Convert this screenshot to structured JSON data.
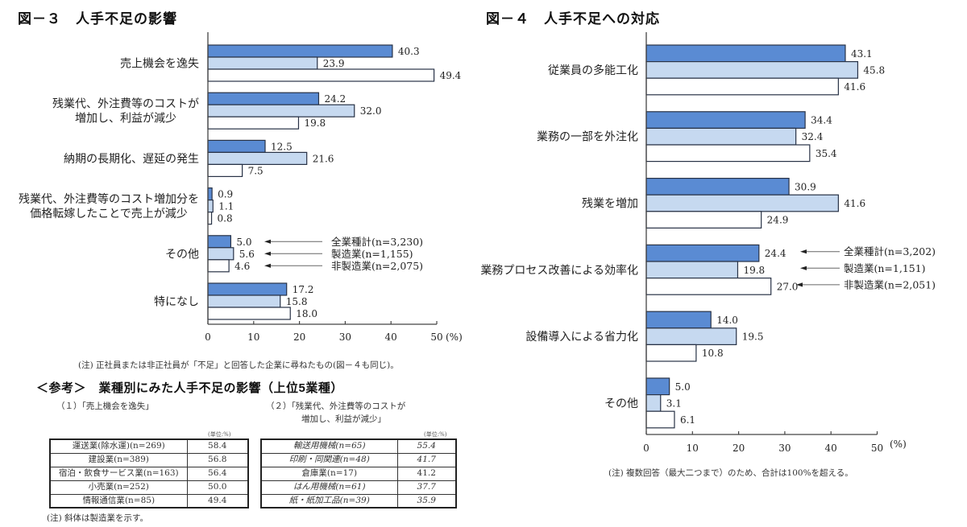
{
  "colors": {
    "all_industries": "#5a8bd3",
    "manufacturing": "#c6d9f0",
    "non_manufacturing": "#ffffff",
    "bar_border": "#283246",
    "axis": "#444444"
  },
  "reference": {
    "heading": "＜参考＞　業種別にみた人手不足の影響（上位5業種）",
    "table1": {
      "caption": "（１）「売上機会を逸失」",
      "unit": "(単位:%)",
      "rows": [
        {
          "industry": "運送業(除水運)(n=269)",
          "value": "58.4",
          "manufacturing": false
        },
        {
          "industry": "建設業(n=389)",
          "value": "56.8",
          "manufacturing": false
        },
        {
          "industry": "宿泊・飲食サービス業(n=163)",
          "value": "56.4",
          "manufacturing": false
        },
        {
          "industry": "小売業(n=252)",
          "value": "50.0",
          "manufacturing": false
        },
        {
          "industry": "情報通信業(n=85)",
          "value": "49.4",
          "manufacturing": false
        }
      ]
    },
    "table2": {
      "caption_lines": [
        "（２）「残業代、外注費等のコストが",
        "増加し、利益が減少」"
      ],
      "unit": "(単位:%)",
      "rows": [
        {
          "industry": "輸送用機械(n=65)",
          "value": "55.4",
          "manufacturing": true
        },
        {
          "industry": "印刷・同関連(n=48)",
          "value": "41.7",
          "manufacturing": true
        },
        {
          "industry": "倉庫業(n=17)",
          "value": "41.2",
          "manufacturing": false
        },
        {
          "industry": "はん用機械(n=61)",
          "value": "37.7",
          "manufacturing": true
        },
        {
          "industry": "紙・紙加工品(n=39)",
          "value": "35.9",
          "manufacturing": true
        }
      ]
    },
    "note": "(注) 斜体は製造業を示す。"
  },
  "chart_data": [
    {
      "type": "bar",
      "orientation": "horizontal",
      "title": "図－３　人手不足の影響",
      "categories": [
        [
          "売上機会を逸失"
        ],
        [
          "残業代、外注費等のコストが",
          "増加し、利益が減少"
        ],
        [
          "納期の長期化、遅延の発生"
        ],
        [
          "残業代、外注費等のコスト増加分を",
          "価格転嫁したことで売上が減少"
        ],
        [
          "その他"
        ],
        [
          "特になし"
        ]
      ],
      "series": [
        {
          "name": "全業種計(n=3,230)",
          "color": "#5a8bd3",
          "values": [
            40.3,
            24.2,
            12.5,
            0.9,
            5.0,
            17.2
          ]
        },
        {
          "name": "製造業(n=1,155)",
          "color": "#c6d9f0",
          "values": [
            23.9,
            32.0,
            21.6,
            1.1,
            5.6,
            15.8
          ]
        },
        {
          "name": "非製造業(n=2,075)",
          "color": "#ffffff",
          "values": [
            49.4,
            19.8,
            7.5,
            0.8,
            4.6,
            18.0
          ]
        }
      ],
      "xlim": [
        0,
        50
      ],
      "xticks": [
        0,
        10,
        20,
        30,
        40,
        50
      ],
      "xunit": "(%)",
      "grid": false,
      "legend_position": "right",
      "note": "(注) 正社員または非正社員が「不足」と回答した企業に尋ねたもの(図－４も同じ)。"
    },
    {
      "type": "bar",
      "orientation": "horizontal",
      "title": "図－４　人手不足への対応",
      "categories": [
        [
          "従業員の多能工化"
        ],
        [
          "業務の一部を外注化"
        ],
        [
          "残業を増加"
        ],
        [
          "業務プロセス改善による効率化"
        ],
        [
          "設備導入による省力化"
        ],
        [
          "その他"
        ]
      ],
      "series": [
        {
          "name": "全業種計(n=3,202)",
          "color": "#5a8bd3",
          "values": [
            43.1,
            34.4,
            30.9,
            24.4,
            14.0,
            5.0
          ]
        },
        {
          "name": "製造業(n=1,151)",
          "color": "#c6d9f0",
          "values": [
            45.8,
            32.4,
            41.6,
            19.8,
            19.5,
            3.1
          ]
        },
        {
          "name": "非製造業(n=2,051)",
          "color": "#ffffff",
          "values": [
            41.6,
            35.4,
            24.9,
            27.0,
            10.8,
            6.1
          ]
        }
      ],
      "xlim": [
        0,
        50
      ],
      "xticks": [
        0,
        10,
        20,
        30,
        40,
        50
      ],
      "xunit": "(%)",
      "grid": false,
      "legend_position": "right",
      "note": "(注) 複数回答（最大二つまで）のため、合計は100%を超える。"
    }
  ]
}
